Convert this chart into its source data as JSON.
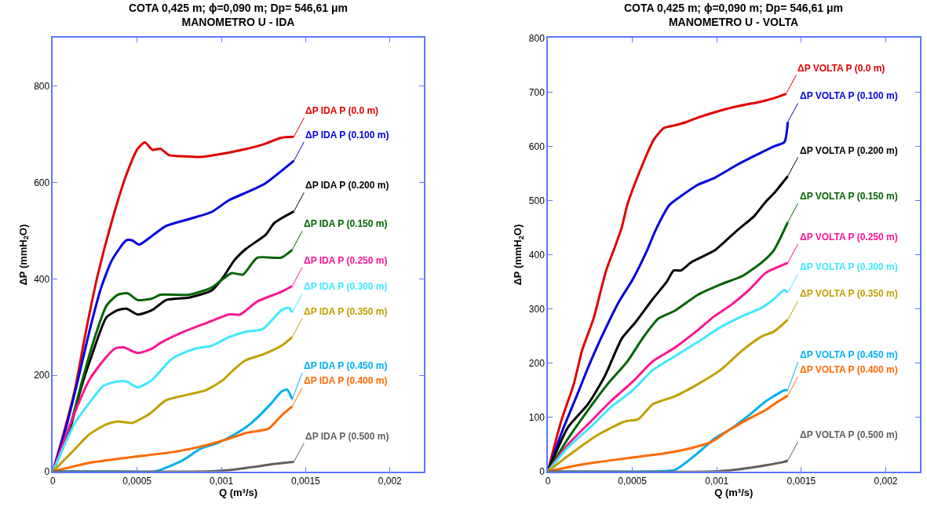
{
  "chart_data": [
    {
      "type": "line",
      "title": "COTA 0,425 m; ϕ=0,090 m; Dp= 546,61 μm",
      "subtitle": "MANOMETRO U - IDA",
      "xlabel": "Q (m³/s)",
      "ylabel": "ΔP (mmH$_{2}$O)",
      "xlim": [
        0,
        0.0022
      ],
      "xticks": [
        0,
        {
          "value": 0.0005,
          "label": "0,0005"
        },
        {
          "value": 0.001,
          "label": "0,001"
        },
        {
          "value": 0.0015,
          "label": "0,0015"
        },
        {
          "value": 0.002,
          "label": "0,002"
        }
      ],
      "ylim": [
        0,
        900
      ],
      "yticks": [
        0,
        200,
        400,
        600,
        800
      ],
      "legend": false,
      "line_style": "solid",
      "series": [
        {
          "name": "ΔP IDA P (0.0 m)",
          "color": "#e00000",
          "x": [
            0,
            8.1e-05,
            0.000132,
            0.000199,
            0.000267,
            0.000351,
            0.000436,
            0.000503,
            0.000546,
            0.000591,
            0.000639,
            0.000689,
            0.000807,
            0.000875,
            0.000976,
            0.001111,
            0.001247,
            0.001356,
            0.00143
          ],
          "values": [
            0,
            101,
            172,
            296,
            409,
            521,
            616,
            670,
            683,
            668,
            670,
            657,
            654,
            653,
            658,
            667,
            679,
            693,
            695
          ]
        },
        {
          "name": "ΔP IDA P (0.100 m)",
          "color": "#0000e0",
          "x": [
            0,
            8.1e-05,
            0.000149,
            0.000216,
            0.000284,
            0.000351,
            0.000436,
            0.00047,
            0.000512,
            0.000588,
            0.000672,
            0.000807,
            0.000943,
            0.001044,
            0.001179,
            0.001264,
            0.00143
          ],
          "values": [
            0,
            95,
            190,
            290,
            379,
            439,
            480,
            480,
            471,
            489,
            510,
            524,
            539,
            563,
            584,
            599,
            645
          ]
        },
        {
          "name": "ΔP IDA P (0.200 m)",
          "color": "#000000",
          "x": [
            0,
            9.8e-05,
            0.000166,
            0.000233,
            0.000318,
            0.000385,
            0.000436,
            0.000503,
            0.000588,
            0.000672,
            0.000807,
            0.000943,
            0.00101,
            0.001078,
            0.001145,
            0.001264,
            0.001314,
            0.00143
          ],
          "values": [
            0,
            83,
            172,
            243,
            320,
            335,
            338,
            326,
            335,
            356,
            361,
            376,
            403,
            439,
            462,
            492,
            516,
            540
          ]
        },
        {
          "name": "ΔP IDA P (0.150 m)",
          "color": "#006400",
          "x": [
            0,
            9.8e-05,
            0.000166,
            0.000233,
            0.000318,
            0.000385,
            0.000444,
            0.000503,
            0.000588,
            0.000639,
            0.000807,
            0.000943,
            0.00101,
            0.001061,
            0.001128,
            0.001213,
            0.001356,
            0.00142
          ],
          "values": [
            0,
            89,
            178,
            261,
            344,
            367,
            370,
            356,
            359,
            367,
            367,
            382,
            400,
            412,
            409,
            444,
            444,
            460
          ]
        },
        {
          "name": "ΔP IDA P (0.250 m)",
          "color": "#ff1493",
          "x": [
            0,
            0.000132,
            0.000216,
            0.000301,
            0.000368,
            0.000419,
            0.000503,
            0.000588,
            0.000639,
            0.000774,
            0.000909,
            0.001044,
            0.001111,
            0.001213,
            0.001356,
            0.00142
          ],
          "values": [
            0,
            124,
            190,
            231,
            255,
            258,
            246,
            255,
            267,
            290,
            308,
            326,
            326,
            353,
            373,
            385
          ]
        },
        {
          "name": "ΔP IDA P (0.300 m)",
          "color": "#40e8ff",
          "x": [
            0,
            0.000132,
            0.000216,
            0.000301,
            0.000385,
            0.000436,
            0.000503,
            0.000588,
            0.000706,
            0.000841,
            0.000943,
            0.001044,
            0.001145,
            0.001247,
            0.001356,
            0.0014,
            0.00142
          ],
          "values": [
            0,
            101,
            142,
            178,
            187,
            187,
            175,
            190,
            234,
            255,
            261,
            279,
            290,
            296,
            335,
            340,
            330
          ]
        },
        {
          "name": "ΔP IDA P (0.350 m)",
          "color": "#c0a000",
          "x": [
            0,
            0.000132,
            0.000216,
            0.000318,
            0.000385,
            0.00047,
            0.000571,
            0.000672,
            0.000807,
            0.000909,
            0.00101,
            0.001078,
            0.001145,
            0.001247,
            0.001356,
            0.00142
          ],
          "values": [
            0,
            47,
            77,
            98,
            104,
            101,
            119,
            148,
            160,
            169,
            190,
            213,
            231,
            243,
            261,
            279
          ]
        },
        {
          "name": "ΔP IDA P (0.450 m)",
          "color": "#00b0f0",
          "x": [
            0,
            0.0004,
            0.000605,
            0.000774,
            0.000875,
            0.000976,
            0.001078,
            0.001179,
            0.001297,
            0.001356,
            0.00139,
            0.00142
          ],
          "values": [
            0,
            0,
            0,
            24,
            47,
            59,
            77,
            101,
            142,
            166,
            170,
            150
          ]
        },
        {
          "name": "ΔP IDA P (0.400 m)",
          "color": "#ff6a00",
          "x": [
            0,
            0.000216,
            0.00047,
            0.000723,
            0.000892,
            0.001044,
            0.001145,
            0.00128,
            0.001356,
            0.00142
          ],
          "values": [
            0,
            18,
            30,
            41,
            53,
            68,
            80,
            89,
            116,
            135
          ]
        },
        {
          "name": "ΔP IDA P (0.500 m)",
          "color": "#606060",
          "x": [
            0,
            0.0009,
            0.00105,
            0.0012,
            0.0013,
            0.00143
          ],
          "values": [
            0,
            0,
            3,
            10,
            15,
            20
          ]
        }
      ]
    },
    {
      "type": "line",
      "title": "COTA 0,425 m; ϕ=0,090 m; Dp= 546,61 μm",
      "subtitle": "MANOMETRO U - VOLTA",
      "xlabel": "Q (m³/s)",
      "ylabel": "ΔP (mmH$_{2}$O)",
      "xlim": [
        0,
        0.0022
      ],
      "xticks": [
        0,
        {
          "value": 0.0005,
          "label": "0,0005"
        },
        {
          "value": 0.001,
          "label": "0,001"
        },
        {
          "value": 0.0015,
          "label": "0,0015"
        },
        {
          "value": 0.002,
          "label": "0,002"
        }
      ],
      "ylim": [
        0,
        800
      ],
      "yticks": [
        0,
        100,
        200,
        300,
        400,
        500,
        600,
        700,
        800
      ],
      "legend": false,
      "line_style": "solid",
      "series": [
        {
          "name": "ΔP VOLTA P (0.0 m)",
          "color": "#e00000",
          "x": [
            0,
            7.8e-05,
            0.000153,
            0.000203,
            0.00027,
            0.000345,
            0.000395,
            0.000437,
            0.00047,
            0.000512,
            0.000553,
            0.000595,
            0.000628,
            0.000687,
            0.000753,
            0.00082,
            0.000887,
            0.00102,
            0.001153,
            0.001253,
            0.001337,
            0.00141
          ],
          "values": [
            0,
            92,
            161,
            224,
            282,
            371,
            413,
            450,
            492,
            529,
            561,
            592,
            613,
            634,
            639,
            645,
            653,
            666,
            676,
            682,
            689,
            697
          ]
        },
        {
          "name": "ΔP VOLTA P (0.100 m)",
          "color": "#0000e0",
          "x": [
            0,
            8.7e-05,
            0.00017,
            0.000253,
            0.000337,
            0.00042,
            0.000503,
            0.000587,
            0.000637,
            0.00072,
            0.000787,
            0.000887,
            0.000987,
            0.00112,
            0.00122,
            0.001337,
            0.0014,
            0.00142
          ],
          "values": [
            0,
            76,
            139,
            203,
            261,
            313,
            355,
            408,
            445,
            492,
            508,
            529,
            542,
            566,
            582,
            600,
            608,
            645
          ]
        },
        {
          "name": "ΔP VOLTA P (0.200 m)",
          "color": "#000000",
          "x": [
            0,
            0.00012,
            0.000237,
            0.000337,
            0.000437,
            0.00052,
            0.00062,
            0.000703,
            0.000745,
            0.000787,
            0.000853,
            0.000987,
            0.00112,
            0.00122,
            0.001287,
            0.001337,
            0.00142
          ],
          "values": [
            0,
            82,
            124,
            176,
            245,
            276,
            318,
            350,
            371,
            371,
            387,
            408,
            445,
            471,
            497,
            513,
            545
          ]
        },
        {
          "name": "ΔP VOLTA P (0.150 m)",
          "color": "#006400",
          "x": [
            0,
            0.00012,
            0.000237,
            0.000353,
            0.00047,
            0.00057,
            0.000653,
            0.000753,
            0.000887,
            0.00102,
            0.001153,
            0.00127,
            0.001337,
            0.00142
          ],
          "values": [
            0,
            61,
            113,
            161,
            203,
            250,
            282,
            297,
            326,
            345,
            361,
            387,
            408,
            460
          ]
        },
        {
          "name": "ΔP VOLTA P (0.250 m)",
          "color": "#ff1493",
          "x": [
            0,
            0.00012,
            0.000253,
            0.00037,
            0.000503,
            0.00062,
            0.000753,
            0.000887,
            0.000987,
            0.001087,
            0.001187,
            0.001287,
            0.001337,
            0.00142
          ],
          "values": [
            0,
            50,
            92,
            129,
            166,
            203,
            229,
            261,
            287,
            308,
            334,
            366,
            374,
            385
          ]
        },
        {
          "name": "ΔP VOLTA P (0.300 m)",
          "color": "#40e8ff",
          "x": [
            0,
            0.00012,
            0.000253,
            0.00037,
            0.000503,
            0.00062,
            0.000753,
            0.000887,
            0.00102,
            0.001153,
            0.00127,
            0.001337,
            0.0014,
            0.00142
          ],
          "values": [
            0,
            45,
            82,
            118,
            150,
            187,
            213,
            239,
            266,
            287,
            303,
            318,
            335,
            330
          ]
        },
        {
          "name": "ΔP VOLTA P (0.350 m)",
          "color": "#c0a000",
          "x": [
            0,
            0.00012,
            0.000287,
            0.000453,
            0.000537,
            0.00062,
            0.000753,
            0.000887,
            0.00102,
            0.001153,
            0.00127,
            0.001337,
            0.00142
          ],
          "values": [
            0,
            29,
            66,
            92,
            97,
            124,
            139,
            161,
            187,
            224,
            250,
            258,
            280
          ]
        },
        {
          "name": "ΔP VOLTA P (0.450 m)",
          "color": "#00b0f0",
          "x": [
            0,
            0.000587,
            0.000753,
            0.000887,
            0.000987,
            0.00107,
            0.001187,
            0.001287,
            0.001337,
            0.0014,
            0.00142
          ],
          "values": [
            0,
            0,
            3,
            34,
            61,
            76,
            103,
            129,
            139,
            150,
            150
          ]
        },
        {
          "name": "ΔP VOLTA P (0.400 m)",
          "color": "#ff6a00",
          "x": [
            0,
            0.000203,
            0.000453,
            0.000703,
            0.00087,
            0.00097,
            0.00107,
            0.001187,
            0.001287,
            0.001337,
            0.00142
          ],
          "values": [
            0,
            13,
            24,
            34,
            45,
            55,
            76,
            97,
            113,
            124,
            140
          ]
        },
        {
          "name": "ΔP VOLTA P (0.500 m)",
          "color": "#606060",
          "x": [
            0,
            0.00098,
            0.0011,
            0.0012,
            0.0013,
            0.0014,
            0.00142
          ],
          "values": [
            0,
            0,
            3,
            7,
            12,
            18,
            20
          ]
        }
      ]
    }
  ]
}
